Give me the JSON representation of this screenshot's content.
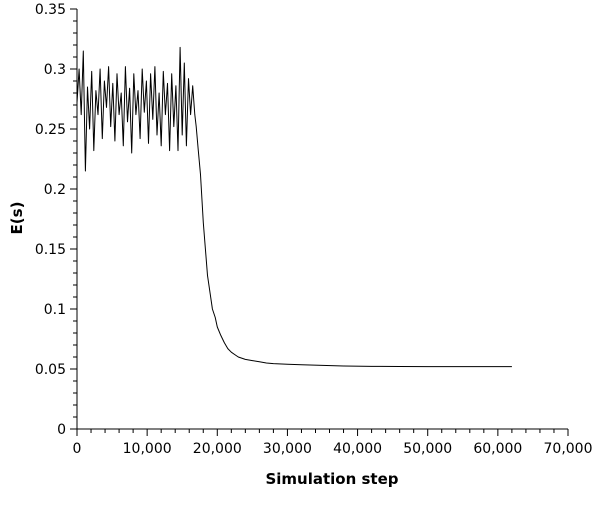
{
  "chart_data": {
    "type": "line",
    "title": "",
    "xlabel": "Simulation step",
    "ylabel": "E(s)",
    "xlim": [
      0,
      70000
    ],
    "ylim": [
      0,
      0.35
    ],
    "x_ticks": [
      0,
      10000,
      20000,
      30000,
      40000,
      50000,
      60000,
      70000
    ],
    "x_tick_labels": [
      "0",
      "10,000",
      "20,000",
      "30,000",
      "40,000",
      "50,000",
      "60,000",
      "70,000"
    ],
    "y_ticks": [
      0,
      0.05,
      0.1,
      0.15,
      0.2,
      0.25,
      0.3,
      0.35
    ],
    "y_tick_labels": [
      "0",
      "0.05",
      "0.1",
      "0.15",
      "0.2",
      "0.25",
      "0.3",
      "0.35"
    ],
    "grid": false,
    "legend": "none",
    "line_color": "#000000",
    "series": [
      {
        "x": [
          0,
          300,
          600,
          900,
          1200,
          1500,
          1800,
          2100,
          2400,
          2700,
          3000,
          3300,
          3600,
          3900,
          4200,
          4500,
          4800,
          5100,
          5400,
          5700,
          6000,
          6300,
          6600,
          6900,
          7200,
          7500,
          7800,
          8100,
          8400,
          8700,
          9000,
          9300,
          9600,
          9900,
          10200,
          10500,
          10800,
          11100,
          11400,
          11700,
          12000,
          12300,
          12600,
          12900,
          13200,
          13500,
          13800,
          14100,
          14400,
          14700,
          15000,
          15300,
          15600,
          15900,
          16200,
          16500,
          16800,
          17000,
          17300,
          17600,
          18000,
          18300,
          18600,
          19000,
          19300,
          19700,
          20000,
          20500,
          21000,
          21500,
          22000,
          22500,
          23000,
          24000,
          25000,
          26000,
          27000,
          28000,
          30000,
          32000,
          35000,
          38000,
          42000,
          46000,
          50000,
          55000,
          60000,
          62000
        ],
        "y": [
          0.272,
          0.3,
          0.262,
          0.315,
          0.215,
          0.285,
          0.25,
          0.298,
          0.232,
          0.282,
          0.262,
          0.3,
          0.242,
          0.29,
          0.268,
          0.302,
          0.252,
          0.288,
          0.24,
          0.296,
          0.262,
          0.28,
          0.236,
          0.302,
          0.256,
          0.284,
          0.23,
          0.296,
          0.262,
          0.282,
          0.242,
          0.3,
          0.264,
          0.29,
          0.238,
          0.296,
          0.258,
          0.302,
          0.245,
          0.28,
          0.236,
          0.298,
          0.262,
          0.288,
          0.232,
          0.296,
          0.252,
          0.286,
          0.232,
          0.318,
          0.245,
          0.305,
          0.236,
          0.292,
          0.262,
          0.286,
          0.262,
          0.252,
          0.232,
          0.212,
          0.172,
          0.15,
          0.128,
          0.112,
          0.1,
          0.093,
          0.085,
          0.078,
          0.072,
          0.067,
          0.064,
          0.062,
          0.06,
          0.058,
          0.057,
          0.056,
          0.055,
          0.0545,
          0.054,
          0.0535,
          0.053,
          0.0525,
          0.0522,
          0.0521,
          0.052,
          0.052,
          0.052,
          0.052
        ]
      }
    ]
  }
}
